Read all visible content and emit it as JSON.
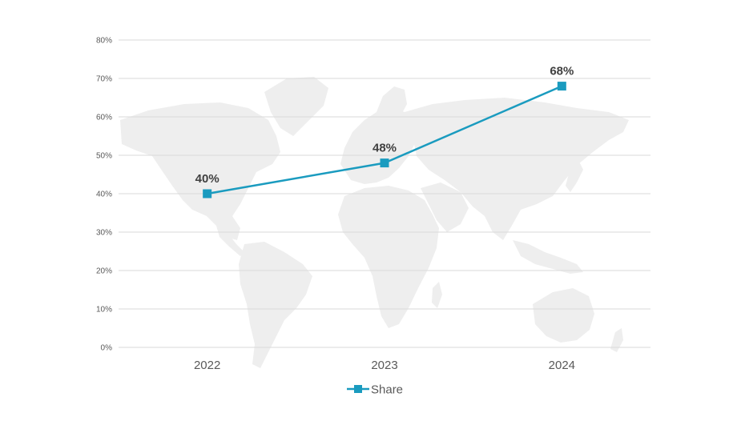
{
  "chart_data": {
    "type": "line",
    "title": "",
    "xlabel": "",
    "ylabel": "",
    "categories": [
      "2022",
      "2023",
      "2024"
    ],
    "series": [
      {
        "name": "Share",
        "values": [
          40,
          48,
          68
        ],
        "color": "#1a9bbf"
      }
    ],
    "data_labels": [
      "40%",
      "48%",
      "68%"
    ],
    "ylim": [
      0,
      80
    ],
    "yticks": [
      0,
      10,
      20,
      30,
      40,
      50,
      60,
      70,
      80
    ],
    "ytick_labels": [
      "0%",
      "10%",
      "20%",
      "30%",
      "40%",
      "50%",
      "60%",
      "70%",
      "80%"
    ],
    "grid": true,
    "legend": "bottom",
    "marker": "square",
    "background": "world-map"
  },
  "legend": {
    "label": "Share"
  },
  "colors": {
    "line": "#1a9bbf",
    "grid": "#d9d9d9",
    "map": "#eeeeee"
  }
}
